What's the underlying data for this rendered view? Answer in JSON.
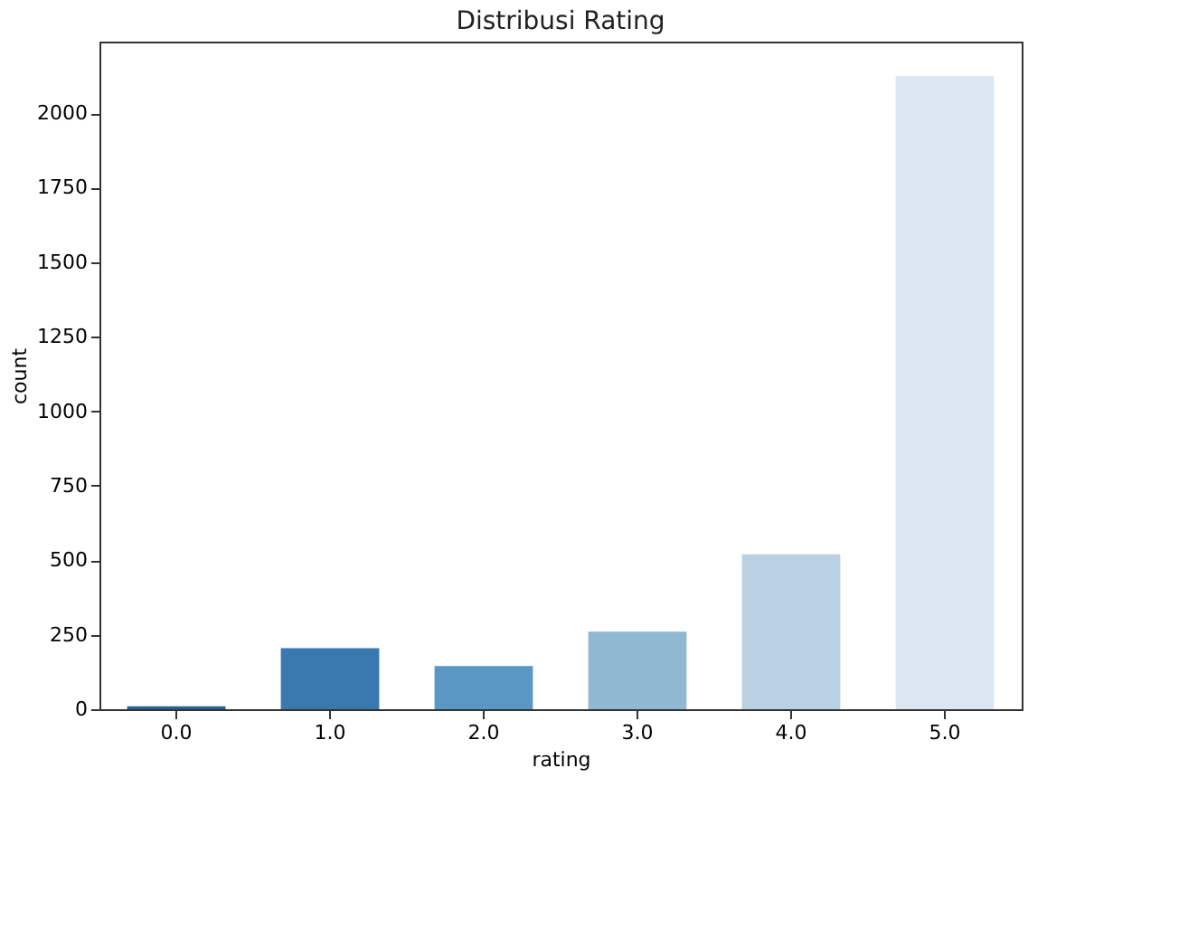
{
  "chart_data": {
    "type": "bar",
    "title": "Distribusi Rating",
    "xlabel": "rating",
    "ylabel": "count",
    "categories": [
      "0.0",
      "1.0",
      "2.0",
      "3.0",
      "4.0",
      "5.0"
    ],
    "values": [
      10,
      205,
      145,
      260,
      520,
      2125
    ],
    "colors": [
      "#2a5f96",
      "#3a78b0",
      "#5a97c4",
      "#8fb8d3",
      "#bad0e3",
      "#dce6f1"
    ],
    "ylim": [
      0,
      2240
    ],
    "yticks": [
      0,
      250,
      500,
      750,
      1000,
      1250,
      1500,
      1750,
      2000
    ],
    "grid": false
  }
}
